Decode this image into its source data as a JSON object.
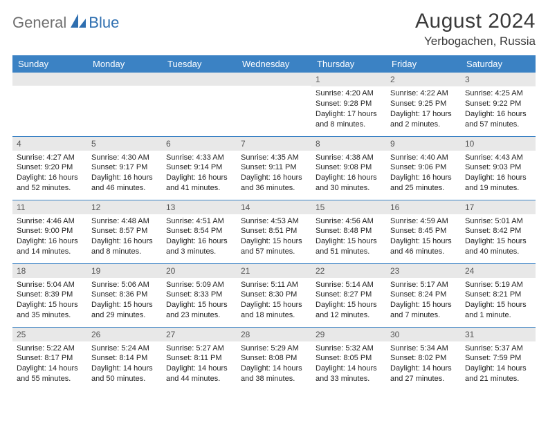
{
  "brand": {
    "part1": "General",
    "part2": "Blue"
  },
  "title": "August 2024",
  "location": "Yerbogachen, Russia",
  "colors": {
    "header_bg": "#3b82c4",
    "header_text": "#ffffff",
    "daynum_bg": "#e8e8e8",
    "border": "#3b82c4",
    "brand_gray": "#6f6f6f",
    "brand_blue": "#2f6fb0",
    "text": "#222222"
  },
  "weekdays": [
    "Sunday",
    "Monday",
    "Tuesday",
    "Wednesday",
    "Thursday",
    "Friday",
    "Saturday"
  ],
  "weeks": [
    [
      {
        "num": "",
        "sunrise": "",
        "sunset": "",
        "day1": "",
        "day2": ""
      },
      {
        "num": "",
        "sunrise": "",
        "sunset": "",
        "day1": "",
        "day2": ""
      },
      {
        "num": "",
        "sunrise": "",
        "sunset": "",
        "day1": "",
        "day2": ""
      },
      {
        "num": "",
        "sunrise": "",
        "sunset": "",
        "day1": "",
        "day2": ""
      },
      {
        "num": "1",
        "sunrise": "Sunrise: 4:20 AM",
        "sunset": "Sunset: 9:28 PM",
        "day1": "Daylight: 17 hours",
        "day2": "and 8 minutes."
      },
      {
        "num": "2",
        "sunrise": "Sunrise: 4:22 AM",
        "sunset": "Sunset: 9:25 PM",
        "day1": "Daylight: 17 hours",
        "day2": "and 2 minutes."
      },
      {
        "num": "3",
        "sunrise": "Sunrise: 4:25 AM",
        "sunset": "Sunset: 9:22 PM",
        "day1": "Daylight: 16 hours",
        "day2": "and 57 minutes."
      }
    ],
    [
      {
        "num": "4",
        "sunrise": "Sunrise: 4:27 AM",
        "sunset": "Sunset: 9:20 PM",
        "day1": "Daylight: 16 hours",
        "day2": "and 52 minutes."
      },
      {
        "num": "5",
        "sunrise": "Sunrise: 4:30 AM",
        "sunset": "Sunset: 9:17 PM",
        "day1": "Daylight: 16 hours",
        "day2": "and 46 minutes."
      },
      {
        "num": "6",
        "sunrise": "Sunrise: 4:33 AM",
        "sunset": "Sunset: 9:14 PM",
        "day1": "Daylight: 16 hours",
        "day2": "and 41 minutes."
      },
      {
        "num": "7",
        "sunrise": "Sunrise: 4:35 AM",
        "sunset": "Sunset: 9:11 PM",
        "day1": "Daylight: 16 hours",
        "day2": "and 36 minutes."
      },
      {
        "num": "8",
        "sunrise": "Sunrise: 4:38 AM",
        "sunset": "Sunset: 9:08 PM",
        "day1": "Daylight: 16 hours",
        "day2": "and 30 minutes."
      },
      {
        "num": "9",
        "sunrise": "Sunrise: 4:40 AM",
        "sunset": "Sunset: 9:06 PM",
        "day1": "Daylight: 16 hours",
        "day2": "and 25 minutes."
      },
      {
        "num": "10",
        "sunrise": "Sunrise: 4:43 AM",
        "sunset": "Sunset: 9:03 PM",
        "day1": "Daylight: 16 hours",
        "day2": "and 19 minutes."
      }
    ],
    [
      {
        "num": "11",
        "sunrise": "Sunrise: 4:46 AM",
        "sunset": "Sunset: 9:00 PM",
        "day1": "Daylight: 16 hours",
        "day2": "and 14 minutes."
      },
      {
        "num": "12",
        "sunrise": "Sunrise: 4:48 AM",
        "sunset": "Sunset: 8:57 PM",
        "day1": "Daylight: 16 hours",
        "day2": "and 8 minutes."
      },
      {
        "num": "13",
        "sunrise": "Sunrise: 4:51 AM",
        "sunset": "Sunset: 8:54 PM",
        "day1": "Daylight: 16 hours",
        "day2": "and 3 minutes."
      },
      {
        "num": "14",
        "sunrise": "Sunrise: 4:53 AM",
        "sunset": "Sunset: 8:51 PM",
        "day1": "Daylight: 15 hours",
        "day2": "and 57 minutes."
      },
      {
        "num": "15",
        "sunrise": "Sunrise: 4:56 AM",
        "sunset": "Sunset: 8:48 PM",
        "day1": "Daylight: 15 hours",
        "day2": "and 51 minutes."
      },
      {
        "num": "16",
        "sunrise": "Sunrise: 4:59 AM",
        "sunset": "Sunset: 8:45 PM",
        "day1": "Daylight: 15 hours",
        "day2": "and 46 minutes."
      },
      {
        "num": "17",
        "sunrise": "Sunrise: 5:01 AM",
        "sunset": "Sunset: 8:42 PM",
        "day1": "Daylight: 15 hours",
        "day2": "and 40 minutes."
      }
    ],
    [
      {
        "num": "18",
        "sunrise": "Sunrise: 5:04 AM",
        "sunset": "Sunset: 8:39 PM",
        "day1": "Daylight: 15 hours",
        "day2": "and 35 minutes."
      },
      {
        "num": "19",
        "sunrise": "Sunrise: 5:06 AM",
        "sunset": "Sunset: 8:36 PM",
        "day1": "Daylight: 15 hours",
        "day2": "and 29 minutes."
      },
      {
        "num": "20",
        "sunrise": "Sunrise: 5:09 AM",
        "sunset": "Sunset: 8:33 PM",
        "day1": "Daylight: 15 hours",
        "day2": "and 23 minutes."
      },
      {
        "num": "21",
        "sunrise": "Sunrise: 5:11 AM",
        "sunset": "Sunset: 8:30 PM",
        "day1": "Daylight: 15 hours",
        "day2": "and 18 minutes."
      },
      {
        "num": "22",
        "sunrise": "Sunrise: 5:14 AM",
        "sunset": "Sunset: 8:27 PM",
        "day1": "Daylight: 15 hours",
        "day2": "and 12 minutes."
      },
      {
        "num": "23",
        "sunrise": "Sunrise: 5:17 AM",
        "sunset": "Sunset: 8:24 PM",
        "day1": "Daylight: 15 hours",
        "day2": "and 7 minutes."
      },
      {
        "num": "24",
        "sunrise": "Sunrise: 5:19 AM",
        "sunset": "Sunset: 8:21 PM",
        "day1": "Daylight: 15 hours",
        "day2": "and 1 minute."
      }
    ],
    [
      {
        "num": "25",
        "sunrise": "Sunrise: 5:22 AM",
        "sunset": "Sunset: 8:17 PM",
        "day1": "Daylight: 14 hours",
        "day2": "and 55 minutes."
      },
      {
        "num": "26",
        "sunrise": "Sunrise: 5:24 AM",
        "sunset": "Sunset: 8:14 PM",
        "day1": "Daylight: 14 hours",
        "day2": "and 50 minutes."
      },
      {
        "num": "27",
        "sunrise": "Sunrise: 5:27 AM",
        "sunset": "Sunset: 8:11 PM",
        "day1": "Daylight: 14 hours",
        "day2": "and 44 minutes."
      },
      {
        "num": "28",
        "sunrise": "Sunrise: 5:29 AM",
        "sunset": "Sunset: 8:08 PM",
        "day1": "Daylight: 14 hours",
        "day2": "and 38 minutes."
      },
      {
        "num": "29",
        "sunrise": "Sunrise: 5:32 AM",
        "sunset": "Sunset: 8:05 PM",
        "day1": "Daylight: 14 hours",
        "day2": "and 33 minutes."
      },
      {
        "num": "30",
        "sunrise": "Sunrise: 5:34 AM",
        "sunset": "Sunset: 8:02 PM",
        "day1": "Daylight: 14 hours",
        "day2": "and 27 minutes."
      },
      {
        "num": "31",
        "sunrise": "Sunrise: 5:37 AM",
        "sunset": "Sunset: 7:59 PM",
        "day1": "Daylight: 14 hours",
        "day2": "and 21 minutes."
      }
    ]
  ]
}
